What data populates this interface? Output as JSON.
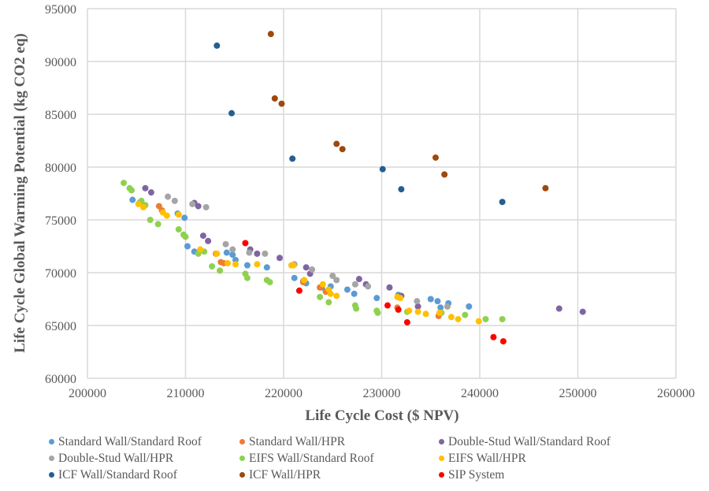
{
  "chart_data": {
    "type": "scatter",
    "title": "",
    "xlabel": "Life Cycle Cost ($ NPV)",
    "ylabel": "Life Cycle Global Warming  Potential (kg CO2 eq)",
    "xlim": [
      200000,
      260000
    ],
    "ylim": [
      60000,
      95000
    ],
    "x_ticks": [
      "200000",
      "210000",
      "220000",
      "230000",
      "240000",
      "250000",
      "260000"
    ],
    "y_ticks": [
      "60000",
      "65000",
      "70000",
      "75000",
      "80000",
      "85000",
      "90000",
      "95000"
    ],
    "grid": true,
    "legend_position": "bottom",
    "series": [
      {
        "name": "Standard Wall/Standard Roof",
        "color": "#5B9BD5",
        "points": [
          [
            204600,
            76900
          ],
          [
            205300,
            76600
          ],
          [
            209200,
            75600
          ],
          [
            209900,
            75200
          ],
          [
            210200,
            72500
          ],
          [
            210900,
            72000
          ],
          [
            214200,
            71900
          ],
          [
            214800,
            71700
          ],
          [
            215100,
            71200
          ],
          [
            216300,
            70700
          ],
          [
            218300,
            70500
          ],
          [
            221100,
            69500
          ],
          [
            222000,
            69200
          ],
          [
            222300,
            69000
          ],
          [
            223900,
            68600
          ],
          [
            224800,
            68700
          ],
          [
            226500,
            68400
          ],
          [
            227200,
            68000
          ],
          [
            229500,
            67600
          ],
          [
            231700,
            67900
          ],
          [
            235000,
            67500
          ],
          [
            235700,
            67300
          ],
          [
            236800,
            67100
          ],
          [
            238900,
            66800
          ],
          [
            236000,
            66700
          ]
        ]
      },
      {
        "name": "Standard Wall/HPR",
        "color": "#ED7D31",
        "points": [
          [
            207300,
            76300
          ],
          [
            207600,
            75900
          ],
          [
            213100,
            71800
          ],
          [
            213600,
            71000
          ],
          [
            222000,
            69100
          ],
          [
            223700,
            68600
          ],
          [
            224300,
            68200
          ],
          [
            231600,
            66700
          ],
          [
            235800,
            65900
          ],
          [
            213900,
            70900
          ]
        ]
      },
      {
        "name": "Double-Stud Wall/Standard Roof",
        "color": "#8064A2",
        "points": [
          [
            205900,
            78000
          ],
          [
            206500,
            77600
          ],
          [
            210900,
            76600
          ],
          [
            211300,
            76300
          ],
          [
            211800,
            73500
          ],
          [
            212300,
            73000
          ],
          [
            216600,
            72200
          ],
          [
            217300,
            71800
          ],
          [
            219600,
            71400
          ],
          [
            222300,
            70500
          ],
          [
            222700,
            69900
          ],
          [
            227700,
            69400
          ],
          [
            228400,
            68900
          ],
          [
            230800,
            68600
          ],
          [
            232000,
            67800
          ],
          [
            233700,
            66800
          ],
          [
            248100,
            66600
          ],
          [
            250500,
            66300
          ]
        ]
      },
      {
        "name": "Double-Stud Wall/HPR",
        "color": "#A5A5A5",
        "points": [
          [
            208200,
            77200
          ],
          [
            208900,
            76800
          ],
          [
            210700,
            76500
          ],
          [
            212100,
            76200
          ],
          [
            214100,
            72700
          ],
          [
            214800,
            72200
          ],
          [
            216500,
            71900
          ],
          [
            218100,
            71800
          ],
          [
            221100,
            70800
          ],
          [
            222900,
            70300
          ],
          [
            225000,
            69700
          ],
          [
            225400,
            69300
          ],
          [
            227300,
            68900
          ],
          [
            228600,
            68700
          ],
          [
            233600,
            67300
          ],
          [
            236700,
            66800
          ]
        ]
      },
      {
        "name": "EIFS Wall/Standard Roof",
        "color": "#8FD14F",
        "points": [
          [
            203700,
            78500
          ],
          [
            204300,
            78000
          ],
          [
            204500,
            77800
          ],
          [
            205500,
            76800
          ],
          [
            205900,
            76400
          ],
          [
            206400,
            75000
          ],
          [
            207200,
            74600
          ],
          [
            209300,
            74100
          ],
          [
            209800,
            73600
          ],
          [
            210000,
            73400
          ],
          [
            211300,
            71800
          ],
          [
            211900,
            72000
          ],
          [
            212700,
            70600
          ],
          [
            213500,
            70200
          ],
          [
            216100,
            69900
          ],
          [
            216300,
            69500
          ],
          [
            218300,
            69300
          ],
          [
            218600,
            69100
          ],
          [
            223700,
            67700
          ],
          [
            224600,
            67200
          ],
          [
            227300,
            66900
          ],
          [
            227400,
            66600
          ],
          [
            229500,
            66400
          ],
          [
            229600,
            66200
          ],
          [
            236100,
            66200
          ],
          [
            238500,
            66000
          ],
          [
            240600,
            65600
          ],
          [
            242300,
            65600
          ],
          [
            232600,
            66300
          ]
        ]
      },
      {
        "name": "EIFS Wall/HPR",
        "color": "#FFC000",
        "points": [
          [
            205200,
            76500
          ],
          [
            205700,
            76200
          ],
          [
            207700,
            75700
          ],
          [
            208100,
            75400
          ],
          [
            209300,
            75500
          ],
          [
            211500,
            72200
          ],
          [
            213200,
            71800
          ],
          [
            214300,
            70900
          ],
          [
            215100,
            70800
          ],
          [
            217300,
            70800
          ],
          [
            220800,
            70700
          ],
          [
            221000,
            70700
          ],
          [
            222100,
            69300
          ],
          [
            224000,
            68900
          ],
          [
            224600,
            68400
          ],
          [
            224800,
            68000
          ],
          [
            225400,
            67800
          ],
          [
            231600,
            67700
          ],
          [
            231900,
            67600
          ],
          [
            232800,
            66400
          ],
          [
            233700,
            66300
          ],
          [
            234500,
            66100
          ],
          [
            235900,
            66200
          ],
          [
            237100,
            65800
          ],
          [
            237800,
            65600
          ],
          [
            239900,
            65400
          ]
        ]
      },
      {
        "name": "ICF Wall/Standard Roof",
        "color": "#255E91",
        "points": [
          [
            213200,
            91500
          ],
          [
            214700,
            85100
          ],
          [
            220900,
            80800
          ],
          [
            230100,
            79800
          ],
          [
            232000,
            77900
          ],
          [
            242300,
            76700
          ]
        ]
      },
      {
        "name": "ICF Wall/HPR",
        "color": "#9E480E",
        "points": [
          [
            218700,
            92600
          ],
          [
            219100,
            86500
          ],
          [
            219800,
            86000
          ],
          [
            225400,
            82200
          ],
          [
            226000,
            81700
          ],
          [
            235500,
            80900
          ],
          [
            236400,
            79300
          ],
          [
            246700,
            78000
          ]
        ]
      },
      {
        "name": "SIP System",
        "color": "#FF0000",
        "points": [
          [
            216100,
            72800
          ],
          [
            221600,
            68300
          ],
          [
            230600,
            66900
          ],
          [
            231700,
            66500
          ],
          [
            232600,
            65300
          ],
          [
            241400,
            63900
          ],
          [
            242400,
            63500
          ]
        ]
      }
    ]
  },
  "legend": {
    "items": [
      {
        "label": "Standard Wall/Standard Roof",
        "color": "#5B9BD5"
      },
      {
        "label": "Standard Wall/HPR",
        "color": "#ED7D31"
      },
      {
        "label": "Double-Stud Wall/Standard Roof",
        "color": "#8064A2"
      },
      {
        "label": "Double-Stud Wall/HPR",
        "color": "#A5A5A5"
      },
      {
        "label": "EIFS Wall/Standard Roof",
        "color": "#8FD14F"
      },
      {
        "label": "EIFS Wall/HPR",
        "color": "#FFC000"
      },
      {
        "label": "ICF Wall/Standard Roof",
        "color": "#255E91"
      },
      {
        "label": "ICF Wall/HPR",
        "color": "#9E480E"
      },
      {
        "label": "SIP System",
        "color": "#FF0000"
      }
    ]
  }
}
